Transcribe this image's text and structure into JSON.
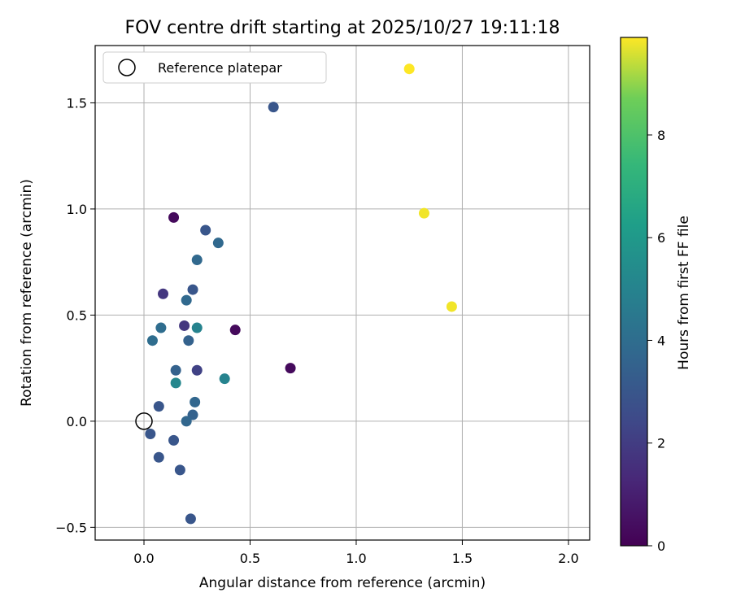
{
  "chart_data": {
    "type": "scatter",
    "title": "FOV centre drift starting at 2025/10/27 19:11:18",
    "xlabel": "Angular distance from reference (arcmin)",
    "ylabel": "Rotation from reference (arcmin)",
    "xlim": [
      -0.23,
      2.1
    ],
    "ylim": [
      -0.56,
      1.77
    ],
    "xticks": [
      0.0,
      0.5,
      1.0,
      1.5,
      2.0
    ],
    "xtick_labels": [
      "0.0",
      "0.5",
      "1.0",
      "1.5",
      "2.0"
    ],
    "yticks": [
      -0.5,
      0.0,
      0.5,
      1.0,
      1.5
    ],
    "ytick_labels": [
      "−0.5",
      "0.0",
      "0.5",
      "1.0",
      "1.5"
    ],
    "grid": true,
    "legend": {
      "position": "top-left",
      "entries": [
        "Reference platepar"
      ]
    },
    "reference_point": {
      "x": 0.0,
      "y": 0.0,
      "label": "Reference platepar"
    },
    "colorbar": {
      "label": "Hours from first FF file",
      "colormap": "viridis",
      "range": [
        0,
        9.9
      ],
      "ticks": [
        0,
        2,
        4,
        6,
        8
      ],
      "tick_labels": [
        "0",
        "2",
        "4",
        "6",
        "8"
      ]
    },
    "points": [
      {
        "x": 1.25,
        "y": 1.66,
        "hours": 9.9
      },
      {
        "x": 1.32,
        "y": 0.98,
        "hours": 9.8
      },
      {
        "x": 1.45,
        "y": 0.54,
        "hours": 9.8
      },
      {
        "x": 0.61,
        "y": 1.48,
        "hours": 3.0
      },
      {
        "x": 0.14,
        "y": 0.96,
        "hours": 0.3
      },
      {
        "x": 0.29,
        "y": 0.9,
        "hours": 3.0
      },
      {
        "x": 0.35,
        "y": 0.84,
        "hours": 3.8
      },
      {
        "x": 0.25,
        "y": 0.76,
        "hours": 3.8
      },
      {
        "x": 0.23,
        "y": 0.62,
        "hours": 3.0
      },
      {
        "x": 0.09,
        "y": 0.6,
        "hours": 1.8
      },
      {
        "x": 0.2,
        "y": 0.57,
        "hours": 3.8
      },
      {
        "x": 0.19,
        "y": 0.45,
        "hours": 1.8
      },
      {
        "x": 0.08,
        "y": 0.44,
        "hours": 4.0
      },
      {
        "x": 0.25,
        "y": 0.44,
        "hours": 5.0
      },
      {
        "x": 0.43,
        "y": 0.43,
        "hours": 0.3
      },
      {
        "x": 0.04,
        "y": 0.38,
        "hours": 4.0
      },
      {
        "x": 0.21,
        "y": 0.38,
        "hours": 3.5
      },
      {
        "x": 0.69,
        "y": 0.25,
        "hours": 0.3
      },
      {
        "x": 0.15,
        "y": 0.24,
        "hours": 3.5
      },
      {
        "x": 0.25,
        "y": 0.24,
        "hours": 2.2
      },
      {
        "x": 0.38,
        "y": 0.2,
        "hours": 5.0
      },
      {
        "x": 0.15,
        "y": 0.18,
        "hours": 5.2
      },
      {
        "x": 0.24,
        "y": 0.09,
        "hours": 3.7
      },
      {
        "x": 0.07,
        "y": 0.07,
        "hours": 3.0
      },
      {
        "x": 0.23,
        "y": 0.03,
        "hours": 3.5
      },
      {
        "x": 0.2,
        "y": 0.0,
        "hours": 3.7
      },
      {
        "x": 0.03,
        "y": -0.06,
        "hours": 3.0
      },
      {
        "x": 0.14,
        "y": -0.09,
        "hours": 3.0
      },
      {
        "x": 0.07,
        "y": -0.17,
        "hours": 3.0
      },
      {
        "x": 0.17,
        "y": -0.23,
        "hours": 3.0
      },
      {
        "x": 0.22,
        "y": -0.46,
        "hours": 3.0
      }
    ]
  }
}
